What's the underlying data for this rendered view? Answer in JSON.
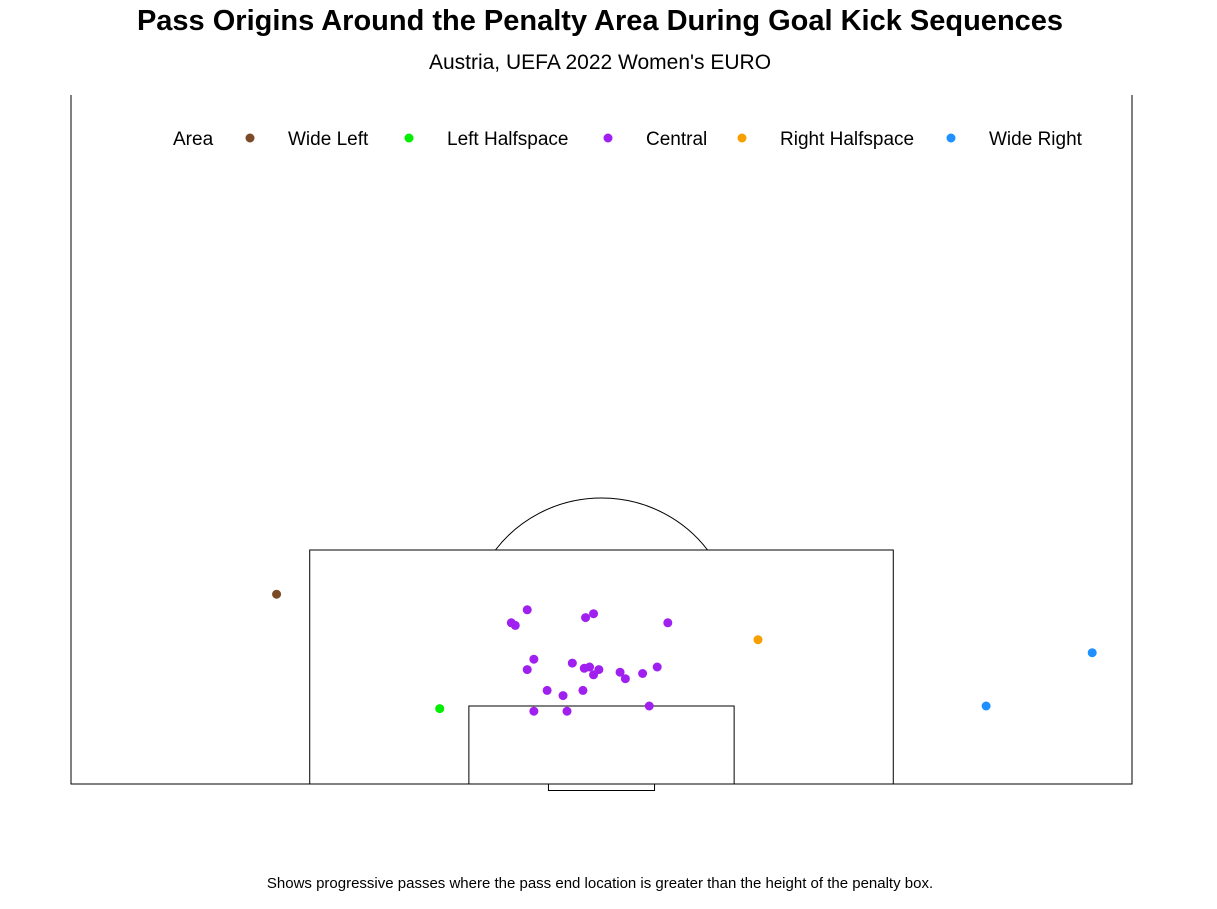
{
  "chart_data": {
    "type": "scatter",
    "title": "Pass Origins Around the Penalty Area During Goal Kick Sequences",
    "subtitle": "Austria, UEFA 2022 Women's EURO",
    "caption": "Shows progressive passes where the pass end location is greater than the height of the penalty box.",
    "legend": {
      "title": "Area",
      "placement": "top"
    },
    "pitch": {
      "x_range": [
        0,
        80
      ],
      "y_range": [
        67,
        120
      ],
      "penalty_box": {
        "x": [
          18,
          62
        ],
        "y": [
          102,
          120
        ]
      },
      "six_yard_box": {
        "x": [
          30,
          50
        ],
        "y": [
          114,
          120
        ]
      },
      "goal": {
        "x": [
          36,
          44
        ],
        "y": [
          120,
          120.5
        ]
      },
      "arc_center": {
        "x": 40,
        "y": 108
      },
      "arc_radius": 10
    },
    "series": [
      {
        "name": "Wide Left",
        "color": "#7b4a26",
        "points": [
          {
            "x": 15.5,
            "y": 105.4
          }
        ]
      },
      {
        "name": "Left Halfspace",
        "color": "#00ee00",
        "points": [
          {
            "x": 27.8,
            "y": 114.2
          }
        ]
      },
      {
        "name": "Central",
        "color": "#a020f0",
        "points": [
          {
            "x": 34.4,
            "y": 106.6
          },
          {
            "x": 33.2,
            "y": 107.6
          },
          {
            "x": 33.5,
            "y": 107.8
          },
          {
            "x": 38.8,
            "y": 107.2
          },
          {
            "x": 39.4,
            "y": 106.9
          },
          {
            "x": 45.0,
            "y": 107.6
          },
          {
            "x": 34.9,
            "y": 110.4
          },
          {
            "x": 34.4,
            "y": 111.2
          },
          {
            "x": 37.8,
            "y": 110.7
          },
          {
            "x": 38.7,
            "y": 111.1
          },
          {
            "x": 39.1,
            "y": 111.0
          },
          {
            "x": 39.8,
            "y": 111.2
          },
          {
            "x": 39.4,
            "y": 111.6
          },
          {
            "x": 41.4,
            "y": 111.4
          },
          {
            "x": 41.8,
            "y": 111.9
          },
          {
            "x": 43.1,
            "y": 111.5
          },
          {
            "x": 44.2,
            "y": 111.0
          },
          {
            "x": 35.9,
            "y": 112.8
          },
          {
            "x": 37.1,
            "y": 113.2
          },
          {
            "x": 38.6,
            "y": 112.8
          },
          {
            "x": 43.6,
            "y": 114.0
          },
          {
            "x": 34.9,
            "y": 114.4
          },
          {
            "x": 37.4,
            "y": 114.4
          }
        ]
      },
      {
        "name": "Right Halfspace",
        "color": "#f5a000",
        "points": [
          {
            "x": 51.8,
            "y": 108.9
          }
        ]
      },
      {
        "name": "Wide Right",
        "color": "#1e90ff",
        "points": [
          {
            "x": 69.0,
            "y": 114.0
          },
          {
            "x": 77.0,
            "y": 109.9
          }
        ]
      }
    ]
  }
}
